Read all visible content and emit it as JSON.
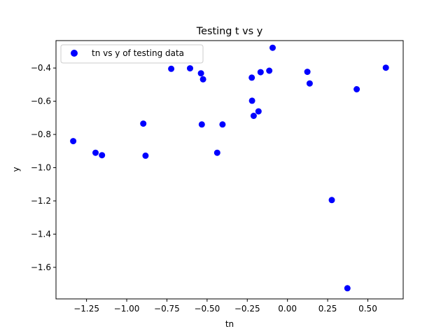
{
  "chart_data": {
    "type": "scatter",
    "title": "Testing t vs y",
    "xlabel": "tn",
    "ylabel": "y",
    "xlim": [
      -1.44,
      0.72
    ],
    "ylim": [
      -1.79,
      -0.235
    ],
    "xticks": [
      -1.25,
      -1.0,
      -0.75,
      -0.5,
      -0.25,
      0.0,
      0.25,
      0.5
    ],
    "xtick_labels": [
      "−1.25",
      "−1.00",
      "−0.75",
      "−0.50",
      "−0.25",
      "0.00",
      "0.25",
      "0.50"
    ],
    "yticks": [
      -1.6,
      -1.4,
      -1.2,
      -1.0,
      -0.8,
      -0.6,
      -0.4
    ],
    "ytick_labels": [
      "−1.6",
      "−1.4",
      "−1.2",
      "−1.0",
      "−0.8",
      "−0.6",
      "−0.4"
    ],
    "grid": false,
    "legend_position": "top-left",
    "color": "#0000ff",
    "series": [
      {
        "name": "tn vs y of testing data",
        "x": [
          -1.333,
          -1.194,
          -1.154,
          -0.897,
          -0.883,
          -0.723,
          -0.606,
          -0.538,
          -0.533,
          -0.525,
          -0.437,
          -0.404,
          -0.222,
          -0.22,
          -0.21,
          -0.18,
          -0.167,
          -0.113,
          -0.092,
          0.124,
          0.138,
          0.276,
          0.373,
          0.431,
          0.612
        ],
        "y": [
          -0.84,
          -0.91,
          -0.925,
          -0.735,
          -0.928,
          -0.405,
          -0.402,
          -0.432,
          -0.74,
          -0.468,
          -0.91,
          -0.74,
          -0.458,
          -0.597,
          -0.688,
          -0.661,
          -0.425,
          -0.416,
          -0.278,
          -0.423,
          -0.493,
          -1.195,
          -1.726,
          -0.528,
          -0.398
        ]
      }
    ]
  }
}
